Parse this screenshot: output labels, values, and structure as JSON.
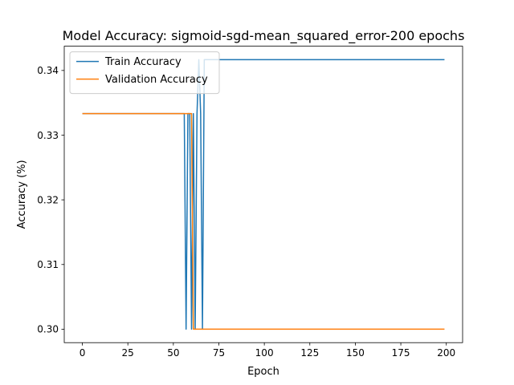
{
  "chart_data": {
    "type": "line",
    "title": "Model Accuracy: sigmoid-sgd-mean_squared_error-200 epochs",
    "xlabel": "Epoch",
    "ylabel": "Accuracy (%)",
    "xlim": [
      -9.95,
      208.95
    ],
    "ylim": [
      0.29792,
      0.34375
    ],
    "xticks": [
      0,
      25,
      50,
      75,
      100,
      125,
      150,
      175,
      200
    ],
    "yticks": [
      0.3,
      0.31,
      0.32,
      0.33,
      0.34
    ],
    "ytick_labels": [
      "0.30",
      "0.31",
      "0.32",
      "0.33",
      "0.34"
    ],
    "grid": false,
    "legend_position": "upper left",
    "series": [
      {
        "name": "Train Accuracy",
        "color": "#1f77b4",
        "points": [
          [
            0,
            0.33333
          ],
          [
            56,
            0.33333
          ],
          [
            57,
            0.3
          ],
          [
            58,
            0.33333
          ],
          [
            59,
            0.33333
          ],
          [
            60,
            0.3
          ],
          [
            61,
            0.33333
          ],
          [
            62,
            0.3
          ],
          [
            63,
            0.33333
          ],
          [
            64,
            0.34167
          ],
          [
            65,
            0.33333
          ],
          [
            66,
            0.3
          ],
          [
            67,
            0.34167
          ],
          [
            199,
            0.34167
          ]
        ]
      },
      {
        "name": "Validation Accuracy",
        "color": "#ff7f0e",
        "points": [
          [
            0,
            0.33333
          ],
          [
            59,
            0.33333
          ],
          [
            60,
            0.33333
          ],
          [
            61,
            0.3
          ],
          [
            62,
            0.3
          ],
          [
            199,
            0.3
          ]
        ]
      }
    ]
  }
}
